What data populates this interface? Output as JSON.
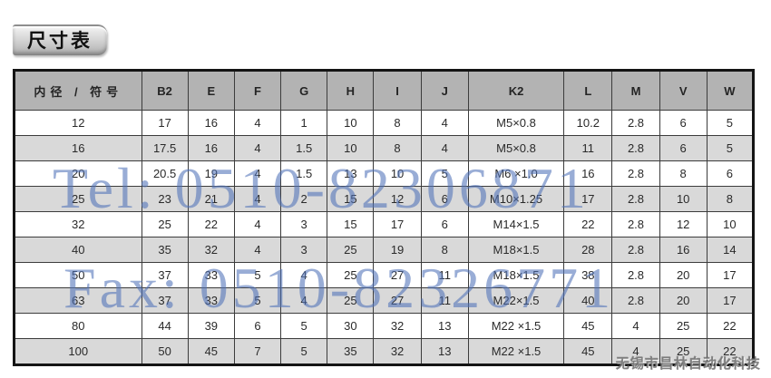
{
  "page": {
    "title": "尺寸表"
  },
  "table": {
    "headers": [
      "内径 / 符号",
      "B2",
      "E",
      "F",
      "G",
      "H",
      "I",
      "J",
      "K2",
      "L",
      "M",
      "V",
      "W"
    ],
    "rows": [
      [
        "12",
        "17",
        "16",
        "4",
        "1",
        "10",
        "8",
        "4",
        "M5×0.8",
        "10.2",
        "2.8",
        "6",
        "5"
      ],
      [
        "16",
        "17.5",
        "16",
        "4",
        "1.5",
        "10",
        "8",
        "4",
        "M5×0.8",
        "11",
        "2.8",
        "6",
        "5"
      ],
      [
        "20",
        "20.5",
        "19",
        "4",
        "1.5",
        "13",
        "10",
        "5",
        "M6 ×1.0",
        "16",
        "2.8",
        "8",
        "6"
      ],
      [
        "25",
        "23",
        "21",
        "4",
        "2",
        "15",
        "12",
        "6",
        "M10×1.25",
        "17",
        "2.8",
        "10",
        "8"
      ],
      [
        "32",
        "25",
        "22",
        "4",
        "3",
        "15",
        "17",
        "6",
        "M14×1.5",
        "22",
        "2.8",
        "12",
        "10"
      ],
      [
        "40",
        "35",
        "32",
        "4",
        "3",
        "25",
        "19",
        "8",
        "M18×1.5",
        "28",
        "2.8",
        "16",
        "14"
      ],
      [
        "50",
        "37",
        "33",
        "5",
        "4",
        "25",
        "27",
        "11",
        "M18×1.5",
        "38",
        "2.8",
        "20",
        "17"
      ],
      [
        "63",
        "37",
        "33",
        "5",
        "4",
        "25",
        "27",
        "11",
        "M22×1.5",
        "40",
        "2.8",
        "20",
        "17"
      ],
      [
        "80",
        "44",
        "39",
        "6",
        "5",
        "30",
        "32",
        "13",
        "M22 ×1.5",
        "45",
        "4",
        "25",
        "22"
      ],
      [
        "100",
        "50",
        "45",
        "7",
        "5",
        "35",
        "32",
        "13",
        "M22 ×1.5",
        "45",
        "4",
        "25",
        "22"
      ]
    ]
  },
  "watermarks": {
    "tel": "Tel: 0510-82306871",
    "fax": "Fax: 0510-82326771",
    "company": "无锡市昌林自动化科技"
  },
  "colors": {
    "header_bg": "#b3b3b3",
    "row_alt_bg": "#d9d9d9",
    "table_border": "#141414",
    "watermark_blue": "#4f72b8",
    "watermark_gray": "#737373"
  }
}
